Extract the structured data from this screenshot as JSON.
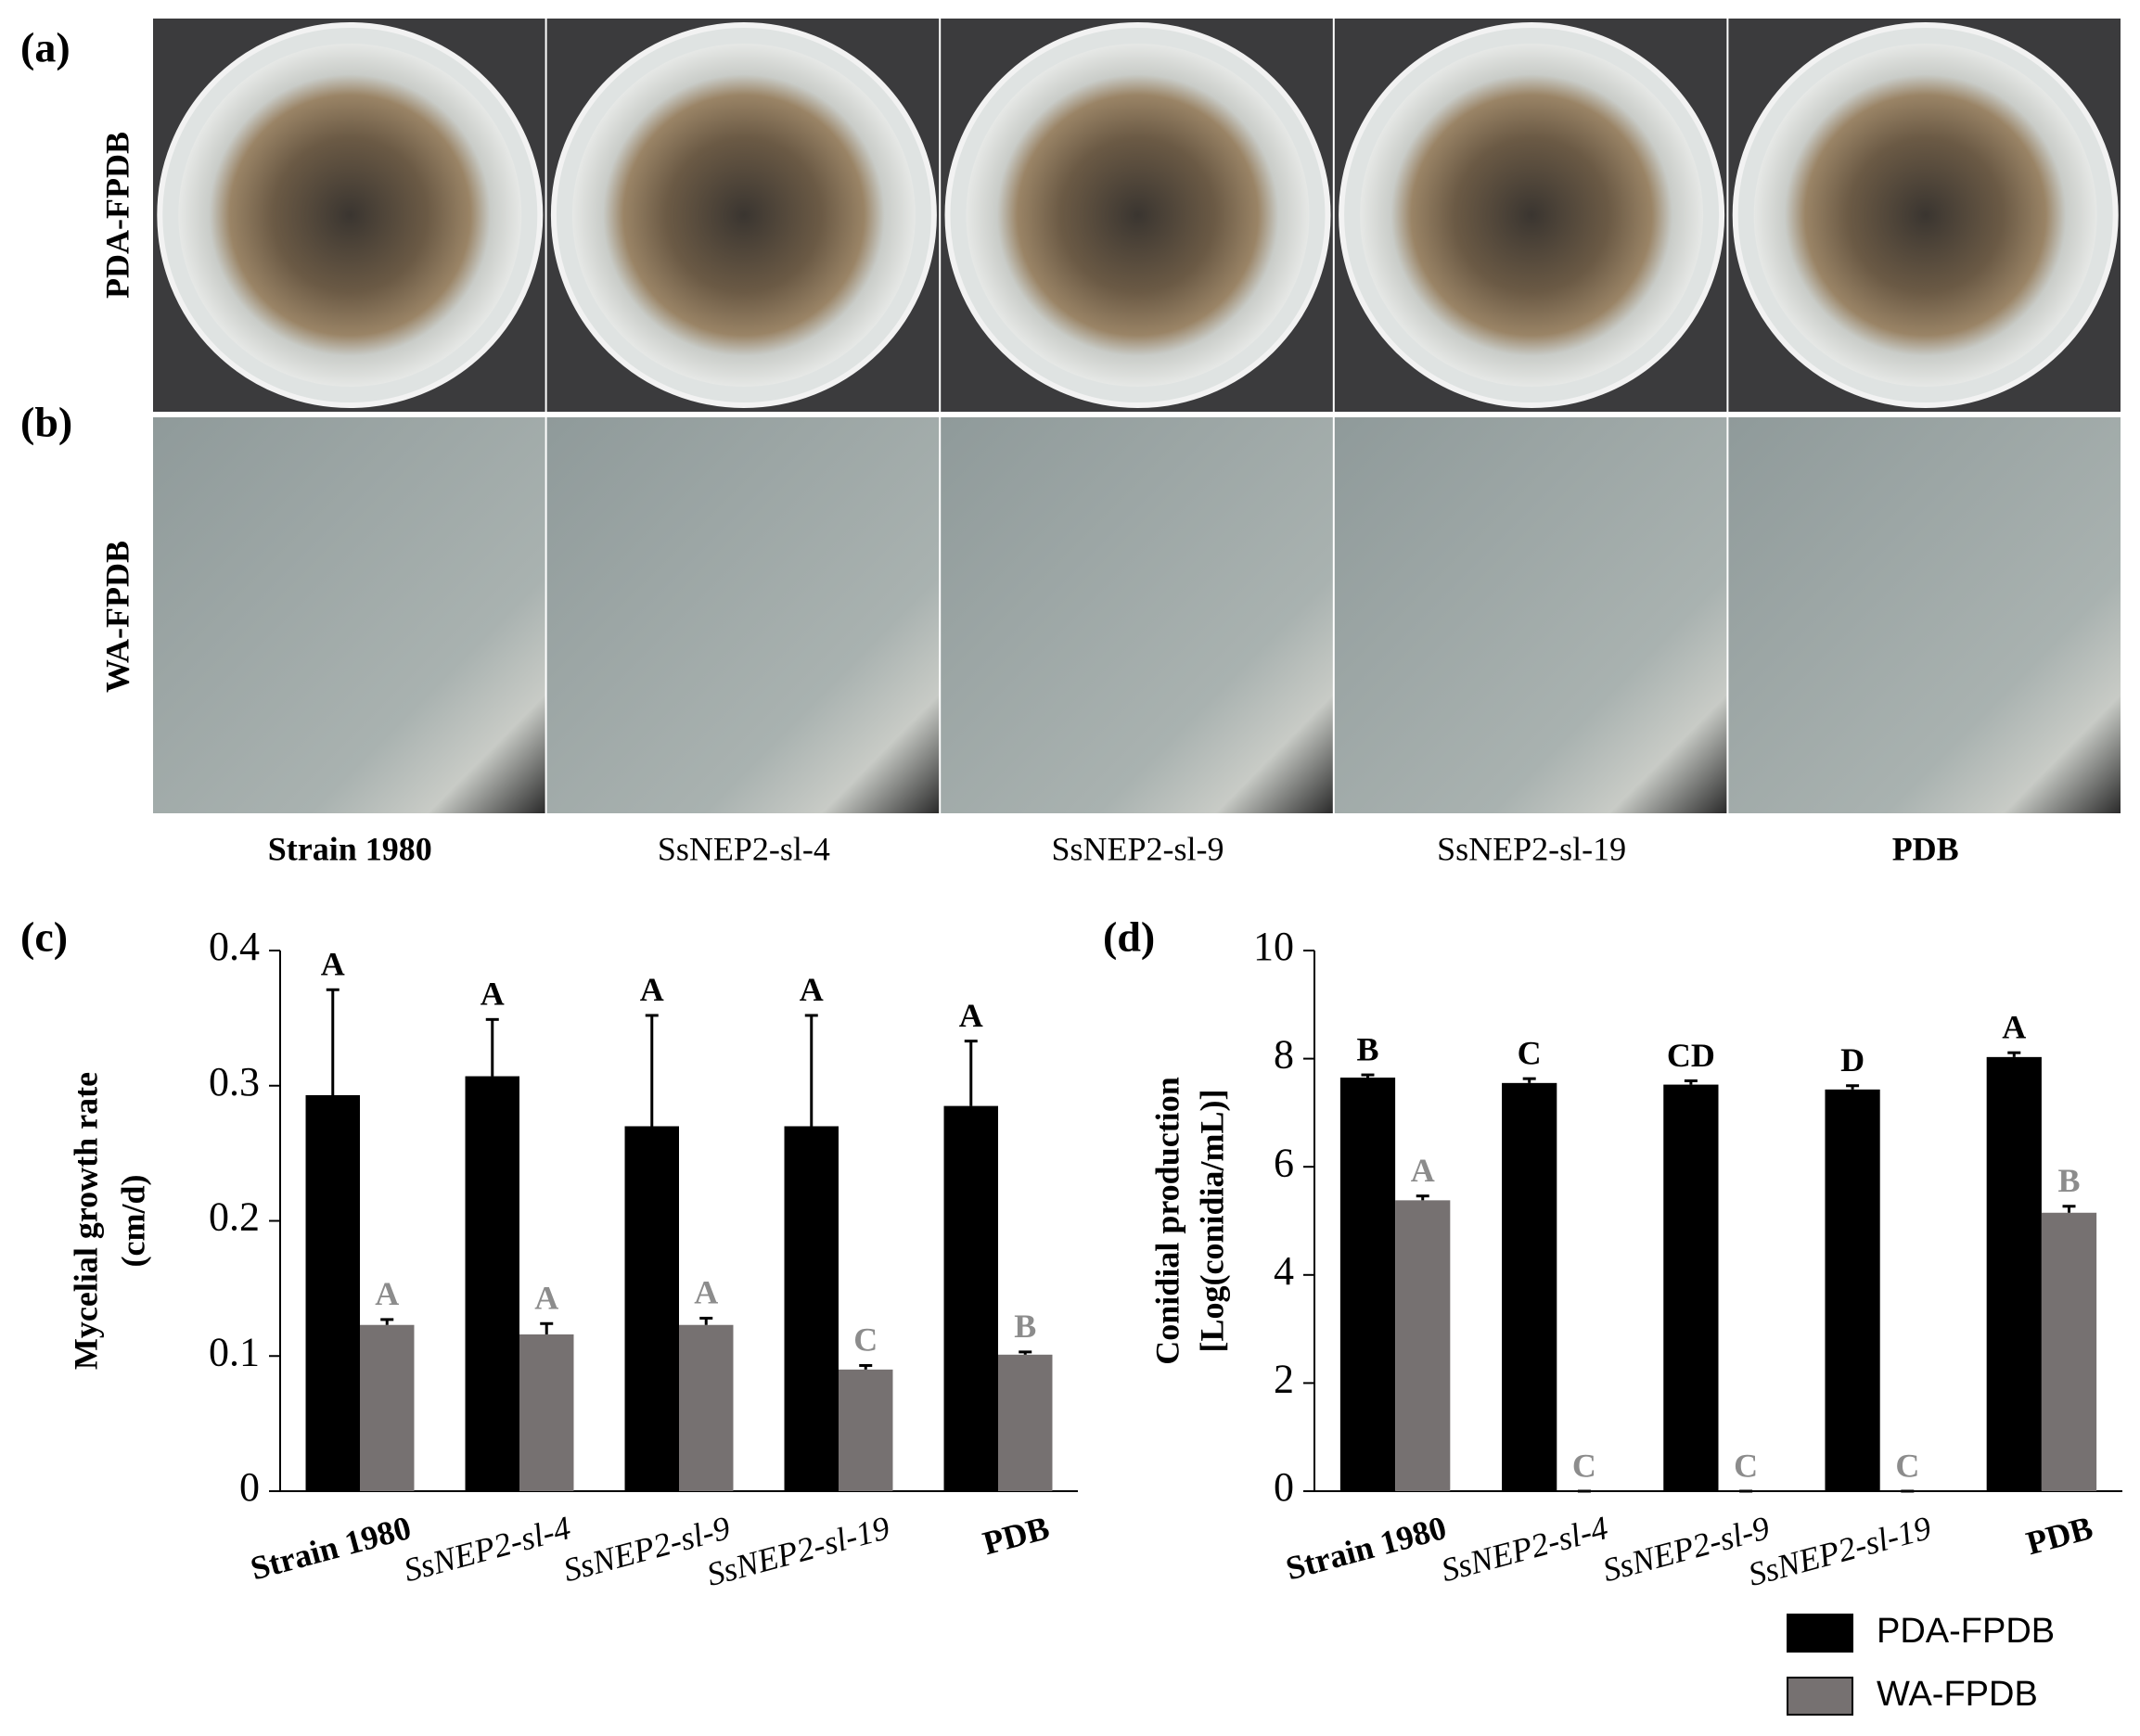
{
  "panels": {
    "a": "(a)",
    "b": "(b)",
    "c": "(c)",
    "d": "(d)",
    "row_labels": [
      "PDA-FPDB",
      "WA-FPDB"
    ],
    "column_labels": [
      "Strain 1980",
      "SsNEP2-sl-4",
      "SsNEP2-sl-9",
      "SsNEP2-sl-19",
      "PDB"
    ]
  },
  "chart_data": [
    {
      "type": "bar",
      "ylabel": [
        "Mycelial growth rate",
        "(cm/d)"
      ],
      "categories": [
        "Strain 1980",
        "SsNEP2-sl-4",
        "SsNEP2-sl-9",
        "SsNEP2-sl-19",
        "PDB"
      ],
      "ylim": [
        0,
        0.4
      ],
      "yticks": [
        0,
        0.1,
        0.2,
        0.3,
        0.4
      ],
      "series": [
        {
          "name": "PDA-FPDB",
          "color": "#000000",
          "values": [
            0.293,
            0.307,
            0.27,
            0.27,
            0.285
          ],
          "errors": [
            0.078,
            0.042,
            0.082,
            0.082,
            0.048
          ],
          "labels": [
            "A",
            "A",
            "A",
            "A",
            "A"
          ],
          "label_color": "#000000"
        },
        {
          "name": "WA-FPDB",
          "color": "#767171",
          "values": [
            0.123,
            0.116,
            0.123,
            0.09,
            0.101
          ],
          "errors": [
            0.004,
            0.008,
            0.005,
            0.003,
            0.002
          ],
          "labels": [
            "A",
            "A",
            "A",
            "C",
            "B"
          ],
          "label_color": "#8c8c8c"
        }
      ]
    },
    {
      "type": "bar",
      "ylabel": [
        "Conidial production",
        "[Log(conidia/mL)]"
      ],
      "categories": [
        "Strain 1980",
        "SsNEP2-sl-4",
        "SsNEP2-sl-9",
        "SsNEP2-sl-19",
        "PDB"
      ],
      "ylim": [
        0,
        10
      ],
      "yticks": [
        0,
        2,
        4,
        6,
        8,
        10
      ],
      "series": [
        {
          "name": "PDA-FPDB",
          "color": "#000000",
          "values": [
            7.65,
            7.55,
            7.52,
            7.43,
            8.03
          ],
          "errors": [
            0.05,
            0.08,
            0.07,
            0.07,
            0.08
          ],
          "labels": [
            "B",
            "C",
            "CD",
            "D",
            "A"
          ],
          "label_color": "#000000"
        },
        {
          "name": "WA-FPDB",
          "color": "#767171",
          "values": [
            5.38,
            0,
            0,
            0,
            5.15
          ],
          "errors": [
            0.08,
            0,
            0,
            0,
            0.12
          ],
          "labels": [
            "A",
            "C",
            "C",
            "C",
            "B"
          ],
          "label_color": "#8c8c8c"
        }
      ]
    }
  ]
}
